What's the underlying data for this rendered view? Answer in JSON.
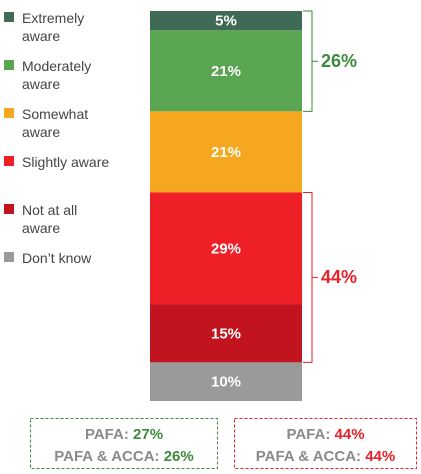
{
  "chart_data": {
    "type": "bar",
    "stacked": true,
    "series": [
      {
        "name": "Extremely aware",
        "color": "#3f6a56",
        "values": [
          5
        ],
        "value_labels": [
          "5%"
        ]
      },
      {
        "name": "Moderately aware",
        "color": "#5aa552",
        "values": [
          21
        ],
        "value_labels": [
          "21%"
        ]
      },
      {
        "name": "Somewhat aware",
        "color": "#f5a71f",
        "values": [
          21
        ],
        "value_labels": [
          "21%"
        ]
      },
      {
        "name": "Slightly aware",
        "color": "#ee1f27",
        "values": [
          29
        ],
        "value_labels": [
          "29%"
        ]
      },
      {
        "name": "Not at all aware",
        "color": "#c2141f",
        "values": [
          15
        ],
        "value_labels": [
          "15%"
        ]
      },
      {
        "name": "Don’t know",
        "color": "#9a9a9a",
        "values": [
          10
        ],
        "value_labels": [
          "10%"
        ]
      }
    ],
    "brackets": [
      {
        "value": 26,
        "label": "26%",
        "color": "#3d8a3d"
      },
      {
        "value": 44,
        "label": "44%",
        "color": "#e8202a"
      }
    ],
    "comparisons": [
      {
        "color": "#3d8a3d",
        "rows": [
          {
            "label": "PAFA:",
            "value": 27,
            "value_label": "27%"
          },
          {
            "label": "PAFA & ACCA:",
            "value": 26,
            "value_label": "26%"
          }
        ]
      },
      {
        "color": "#e8202a",
        "rows": [
          {
            "label": "PAFA:",
            "value": 44,
            "value_label": "44%"
          },
          {
            "label": "PAFA & ACCA:",
            "value": 44,
            "value_label": "44%"
          }
        ]
      }
    ]
  }
}
